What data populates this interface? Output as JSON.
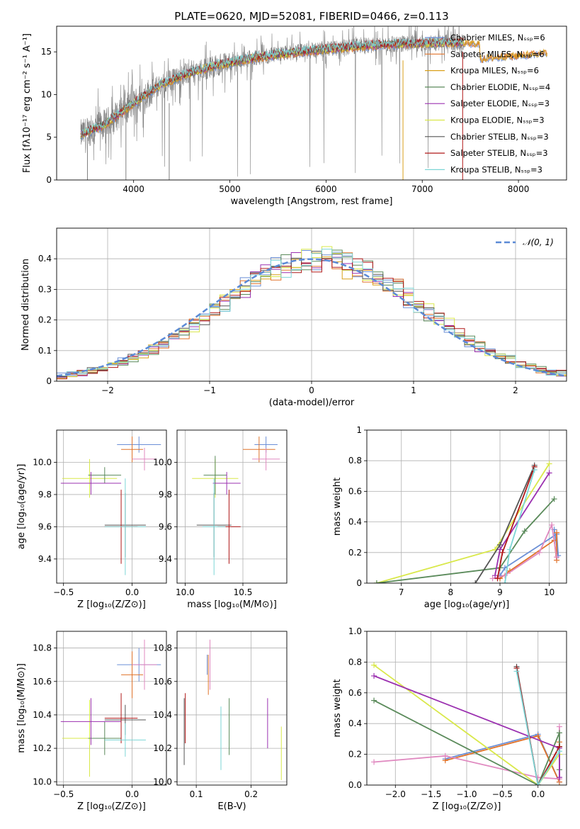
{
  "title": "PLATE=0620, MJD=52081, FIBERID=0466, z=0.113",
  "colors": {
    "miles_chabrier": "#6b8fd6",
    "miles_salpeter": "#e0732a",
    "miles_kroupa": "#d9a01a",
    "elodie_chabrier": "#5a8a5a",
    "elodie_salpeter": "#9b30b0",
    "elodie_kroupa": "#d9e84a",
    "stelib_chabrier": "#555555",
    "stelib_salpeter": "#b01818",
    "stelib_kroupa": "#7dd6d6",
    "extra_pink": "#e089c0",
    "data_grey": "#808080",
    "normal_curve": "#5b8ad6",
    "grid": "#b0b0b0"
  },
  "chart_data": [
    {
      "id": "spectrum",
      "type": "line",
      "xlabel": "wavelength [Angstrom, rest frame]",
      "ylabel": "Flux [fλ10⁻¹⁷ erg cm⁻² s⁻¹ A⁻¹]",
      "xlim": [
        3200,
        8500
      ],
      "ylim": [
        0,
        18
      ],
      "xticks": [
        4000,
        5000,
        6000,
        7000,
        8000
      ],
      "yticks": [
        0,
        5,
        10,
        15
      ],
      "legend_position": "upper-right",
      "legend": [
        {
          "label": "Chabrier MILES, Nₛₛₚ=6",
          "color_key": "miles_chabrier"
        },
        {
          "label": "Salpeter MILES, Nₛₛₚ=6",
          "color_key": "miles_salpeter"
        },
        {
          "label": "Kroupa MILES, Nₛₛₚ=6",
          "color_key": "miles_kroupa"
        },
        {
          "label": "Chabrier ELODIE, Nₛₛₚ=4",
          "color_key": "elodie_chabrier"
        },
        {
          "label": "Salpeter ELODIE, Nₛₛₚ=3",
          "color_key": "elodie_salpeter"
        },
        {
          "label": "Kroupa ELODIE, Nₛₛₚ=3",
          "color_key": "elodie_kroupa"
        },
        {
          "label": "Chabrier STELIB, Nₛₛₚ=3",
          "color_key": "stelib_chabrier"
        },
        {
          "label": "Salpeter STELIB, Nₛₛₚ=3",
          "color_key": "stelib_salpeter"
        },
        {
          "label": "Kroupa STELIB, Nₛₛₚ=3",
          "color_key": "stelib_kroupa"
        }
      ],
      "model_trend_x": [
        3450,
        3700,
        4000,
        4300,
        4600,
        4900,
        5200,
        5500,
        5800,
        6100,
        6400,
        6700,
        7000,
        7300
      ],
      "model_trend_y": [
        5.3,
        6.5,
        9.0,
        11.3,
        12.6,
        13.5,
        14.2,
        14.7,
        15.1,
        15.4,
        15.7,
        15.9,
        16.0,
        16.1
      ],
      "data_end_x": 7430,
      "model_end_x": 8300,
      "model_tail_y": [
        14.3,
        15.0
      ]
    },
    {
      "id": "residual_hist",
      "type": "line",
      "xlabel": "(data-model)/error",
      "ylabel": "Normed distribution",
      "xlim": [
        -2.5,
        2.5
      ],
      "ylim": [
        0,
        0.5
      ],
      "xticks": [
        -2,
        -1,
        0,
        1,
        2
      ],
      "yticks": [
        0,
        0.1,
        0.2,
        0.3,
        0.4
      ],
      "legend": [
        {
          "label": "𝒩(0, 1)",
          "color_key": "normal_curve"
        }
      ],
      "bins": [
        -2.5,
        2.5,
        50
      ]
    },
    {
      "id": "age_vs_Z",
      "type": "scatter",
      "xlabel": "Z [log₁₀(Z/Z⊙)]",
      "ylabel": "age  [log₁₀(age/yr)]",
      "xlim": [
        -0.55,
        0.25
      ],
      "ylim": [
        9.25,
        10.2
      ],
      "xticks": [
        -0.5,
        0.0
      ],
      "yticks": [
        9.4,
        9.6,
        9.8,
        10.0
      ],
      "points": [
        {
          "x": 0.05,
          "y": 10.11,
          "xe": 0.16,
          "ye": 0.05,
          "color_key": "miles_chabrier"
        },
        {
          "x": 0.0,
          "y": 10.08,
          "xe": 0.08,
          "ye": 0.08,
          "color_key": "miles_salpeter"
        },
        {
          "x": 0.09,
          "y": 10.02,
          "xe": 0.09,
          "ye": 0.07,
          "color_key": "extra_pink"
        },
        {
          "x": -0.31,
          "y": 9.9,
          "xe": 0.2,
          "ye": 0.12,
          "color_key": "elodie_kroupa"
        },
        {
          "x": -0.2,
          "y": 9.92,
          "xe": 0.12,
          "ye": 0.05,
          "color_key": "elodie_chabrier"
        },
        {
          "x": -0.3,
          "y": 9.87,
          "xe": 0.22,
          "ye": 0.07,
          "color_key": "elodie_salpeter"
        },
        {
          "x": -0.05,
          "y": 9.61,
          "xe": 0.15,
          "ye": 0.2,
          "color_key": "stelib_chabrier"
        },
        {
          "x": -0.08,
          "y": 9.6,
          "xe": 0.12,
          "ye": 0.23,
          "color_key": "stelib_salpeter"
        },
        {
          "x": -0.05,
          "y": 9.6,
          "xe": 0.15,
          "ye": 0.3,
          "color_key": "stelib_kroupa"
        }
      ]
    },
    {
      "id": "age_vs_mass",
      "type": "scatter",
      "xlabel": "mass [log₁₀(M/M⊙)]",
      "ylabel": "",
      "xlim": [
        9.93,
        10.88
      ],
      "ylim": [
        9.25,
        10.2
      ],
      "xticks": [
        10.0,
        10.5
      ],
      "yticks": [
        9.4,
        9.6,
        9.8,
        10.0
      ],
      "points": [
        {
          "x": 10.7,
          "y": 10.11,
          "xe": 0.1,
          "ye": 0.05,
          "color_key": "miles_chabrier"
        },
        {
          "x": 10.64,
          "y": 10.08,
          "xe": 0.14,
          "ye": 0.08,
          "color_key": "miles_salpeter"
        },
        {
          "x": 10.7,
          "y": 10.02,
          "xe": 0.12,
          "ye": 0.07,
          "color_key": "extra_pink"
        },
        {
          "x": 10.26,
          "y": 9.9,
          "xe": 0.2,
          "ye": 0.12,
          "color_key": "elodie_kroupa"
        },
        {
          "x": 10.26,
          "y": 9.92,
          "xe": 0.1,
          "ye": 0.12,
          "color_key": "elodie_chabrier"
        },
        {
          "x": 10.36,
          "y": 9.87,
          "xe": 0.12,
          "ye": 0.07,
          "color_key": "elodie_salpeter"
        },
        {
          "x": 10.25,
          "y": 9.61,
          "xe": 0.15,
          "ye": 0.2,
          "color_key": "stelib_chabrier"
        },
        {
          "x": 10.38,
          "y": 9.6,
          "xe": 0.1,
          "ye": 0.23,
          "color_key": "stelib_salpeter"
        },
        {
          "x": 10.25,
          "y": 9.6,
          "xe": 0.1,
          "ye": 0.3,
          "color_key": "stelib_kroupa"
        }
      ]
    },
    {
      "id": "weight_vs_age",
      "type": "line",
      "xlabel": "age  [log₁₀(age/yr)]",
      "ylabel": "mass weight",
      "xlim": [
        6.3,
        10.35
      ],
      "ylim": [
        0,
        1.0
      ],
      "xticks": [
        7,
        8,
        9,
        10
      ],
      "yticks": [
        0.0,
        0.2,
        0.4,
        0.6,
        0.8,
        1.0
      ],
      "series": [
        {
          "color_key": "miles_chabrier",
          "x": [
            9.0,
            9.1,
            10.15,
            10.18,
            10.1
          ],
          "y": [
            0.05,
            0.1,
            0.32,
            0.18,
            0.35
          ]
        },
        {
          "color_key": "miles_salpeter",
          "x": [
            9.0,
            9.2,
            10.1,
            10.15,
            10.15
          ],
          "y": [
            0.03,
            0.08,
            0.28,
            0.15,
            0.33
          ]
        },
        {
          "color_key": "extra_pink",
          "x": [
            8.85,
            9.1,
            9.8,
            10.05,
            10.15
          ],
          "y": [
            0.03,
            0.05,
            0.2,
            0.38,
            0.17
          ]
        },
        {
          "color_key": "elodie_kroupa",
          "x": [
            6.5,
            8.9,
            10.0
          ],
          "y": [
            0.0,
            0.22,
            0.78
          ]
        },
        {
          "color_key": "elodie_chabrier",
          "x": [
            6.5,
            9.0,
            9.5,
            10.1
          ],
          "y": [
            0.0,
            0.1,
            0.34,
            0.55
          ]
        },
        {
          "color_key": "elodie_salpeter",
          "x": [
            8.9,
            9.0,
            10.0
          ],
          "y": [
            0.05,
            0.22,
            0.72
          ]
        },
        {
          "color_key": "stelib_chabrier",
          "x": [
            8.5,
            9.0,
            9.7
          ],
          "y": [
            0.0,
            0.25,
            0.77
          ]
        },
        {
          "color_key": "stelib_salpeter",
          "x": [
            8.95,
            9.05,
            9.7
          ],
          "y": [
            0.03,
            0.2,
            0.76
          ]
        },
        {
          "color_key": "stelib_kroupa",
          "x": [
            9.1,
            9.2,
            9.7
          ],
          "y": [
            0.0,
            0.22,
            0.74
          ]
        }
      ]
    },
    {
      "id": "mass_vs_Z",
      "type": "scatter",
      "xlabel": "Z [log₁₀(Z/Z⊙)]",
      "ylabel": "mass [log₁₀(M/M⊙)]",
      "xlim": [
        -0.55,
        0.25
      ],
      "ylim": [
        9.98,
        10.9
      ],
      "xticks": [
        -0.5,
        0.0
      ],
      "yticks": [
        10.0,
        10.2,
        10.4,
        10.6,
        10.8
      ],
      "points": [
        {
          "x": 0.05,
          "y": 10.7,
          "xe": 0.16,
          "ye": 0.1,
          "color_key": "miles_chabrier"
        },
        {
          "x": 0.0,
          "y": 10.64,
          "xe": 0.08,
          "ye": 0.14,
          "color_key": "miles_salpeter"
        },
        {
          "x": 0.09,
          "y": 10.7,
          "xe": 0.09,
          "ye": 0.15,
          "color_key": "extra_pink"
        },
        {
          "x": -0.31,
          "y": 10.26,
          "xe": 0.2,
          "ye": 0.23,
          "color_key": "elodie_kroupa"
        },
        {
          "x": -0.2,
          "y": 10.26,
          "xe": 0.12,
          "ye": 0.1,
          "color_key": "elodie_chabrier"
        },
        {
          "x": -0.3,
          "y": 10.36,
          "xe": 0.22,
          "ye": 0.14,
          "color_key": "elodie_salpeter"
        },
        {
          "x": -0.05,
          "y": 10.37,
          "xe": 0.15,
          "ye": 0.09,
          "color_key": "stelib_chabrier"
        },
        {
          "x": -0.08,
          "y": 10.38,
          "xe": 0.12,
          "ye": 0.15,
          "color_key": "stelib_salpeter"
        },
        {
          "x": -0.05,
          "y": 10.25,
          "xe": 0.15,
          "ye": 0.1,
          "color_key": "stelib_kroupa"
        }
      ]
    },
    {
      "id": "mass_vs_ebv",
      "type": "scatter",
      "xlabel": "E(B-V)",
      "ylabel": "",
      "xlim": [
        0.065,
        0.265
      ],
      "ylim": [
        9.98,
        10.9
      ],
      "xticks": [
        0.1,
        0.2
      ],
      "yticks": [
        10.0,
        10.2,
        10.4,
        10.6,
        10.8
      ],
      "points": [
        {
          "x": 0.078,
          "y": 10.3,
          "ye": 0.2,
          "color_key": "stelib_chabrier"
        },
        {
          "x": 0.08,
          "y": 10.38,
          "ye": 0.15,
          "color_key": "stelib_salpeter"
        },
        {
          "x": 0.12,
          "y": 10.7,
          "ye": 0.06,
          "color_key": "miles_chabrier"
        },
        {
          "x": 0.122,
          "y": 10.64,
          "ye": 0.12,
          "color_key": "miles_salpeter"
        },
        {
          "x": 0.125,
          "y": 10.7,
          "ye": 0.15,
          "color_key": "extra_pink"
        },
        {
          "x": 0.145,
          "y": 10.26,
          "ye": 0.19,
          "color_key": "stelib_kroupa"
        },
        {
          "x": 0.16,
          "y": 10.33,
          "ye": 0.17,
          "color_key": "elodie_chabrier"
        },
        {
          "x": 0.23,
          "y": 10.35,
          "ye": 0.15,
          "color_key": "elodie_salpeter"
        },
        {
          "x": 0.255,
          "y": 10.17,
          "ye": 0.16,
          "color_key": "elodie_kroupa"
        }
      ]
    },
    {
      "id": "weight_vs_Z",
      "type": "line",
      "xlabel": "Z [log₁₀(Z/Z⊙)]",
      "ylabel": "mass weight",
      "xlim": [
        -2.4,
        0.4
      ],
      "ylim": [
        0,
        1.0
      ],
      "xticks": [
        -2.0,
        -1.5,
        -1.0,
        -0.5,
        0.0
      ],
      "yticks": [
        0.0,
        0.2,
        0.4,
        0.6,
        0.8,
        1.0
      ],
      "series": [
        {
          "color_key": "miles_chabrier",
          "x": [
            -1.3,
            0.0,
            0.3,
            0.3
          ],
          "y": [
            0.17,
            0.33,
            0.02,
            0.25
          ]
        },
        {
          "color_key": "miles_salpeter",
          "x": [
            -1.3,
            0.0,
            0.3,
            0.3
          ],
          "y": [
            0.16,
            0.32,
            0.02,
            0.28
          ]
        },
        {
          "color_key": "extra_pink",
          "x": [
            -2.3,
            -1.3,
            0.0,
            0.3,
            0.3
          ],
          "y": [
            0.15,
            0.19,
            0.05,
            0.04,
            0.38
          ]
        },
        {
          "color_key": "elodie_kroupa",
          "x": [
            -2.3,
            0.0,
            0.3
          ],
          "y": [
            0.78,
            0.0,
            0.2
          ]
        },
        {
          "color_key": "elodie_chabrier",
          "x": [
            -2.3,
            0.0,
            0.3,
            0.3
          ],
          "y": [
            0.55,
            0.0,
            0.34,
            0.1
          ]
        },
        {
          "color_key": "elodie_salpeter",
          "x": [
            -2.3,
            0.3,
            0.3
          ],
          "y": [
            0.71,
            0.24,
            0.05
          ]
        },
        {
          "color_key": "stelib_chabrier",
          "x": [
            -0.3,
            0.0,
            0.3
          ],
          "y": [
            0.77,
            0.0,
            0.25
          ]
        },
        {
          "color_key": "stelib_salpeter",
          "x": [
            -0.3,
            0.0,
            0.3
          ],
          "y": [
            0.76,
            0.0,
            0.25
          ]
        },
        {
          "color_key": "stelib_kroupa",
          "x": [
            -0.3,
            0.0,
            0.3
          ],
          "y": [
            0.74,
            0.0,
            0.22
          ]
        }
      ]
    }
  ]
}
